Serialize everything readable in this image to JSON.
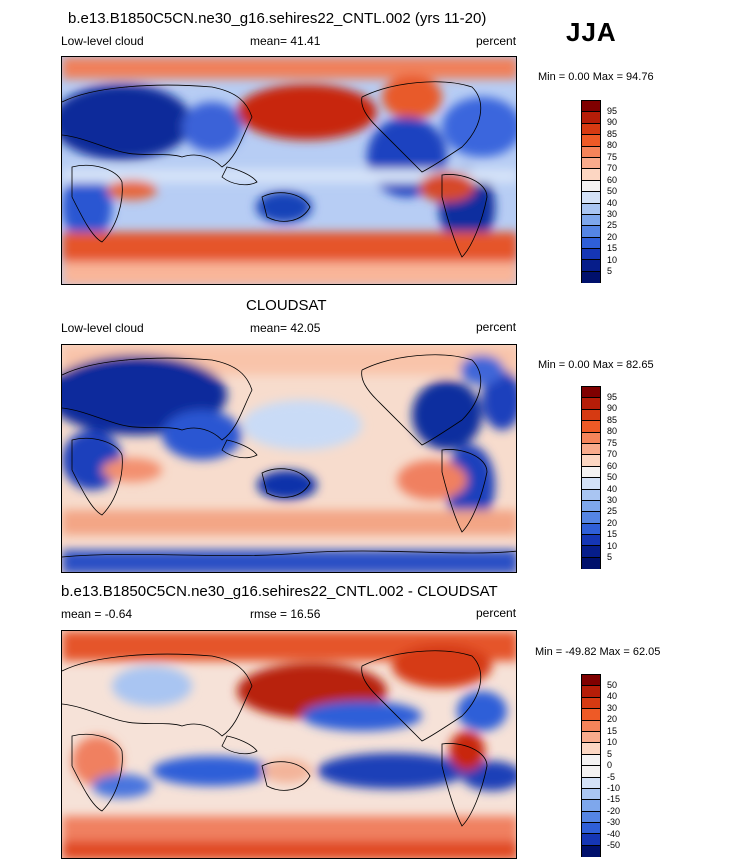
{
  "season": "JJA",
  "panels": [
    {
      "id": "model",
      "title": "b.e13.B1850C5CN.ne30_g16.sehires22_CNTL.002 (yrs 11-20)",
      "left_label": "Low-level cloud",
      "center_label": "mean=  41.41",
      "right_label": "percent",
      "minmax": "Min =   0.00 Max =  94.76",
      "colorbar_levels": [
        "95",
        "90",
        "85",
        "80",
        "75",
        "70",
        "60",
        "50",
        "40",
        "30",
        "25",
        "20",
        "15",
        "10",
        "5"
      ]
    },
    {
      "id": "cloudsat",
      "title": "CLOUDSAT",
      "left_label": "Low-level cloud",
      "center_label": "mean=  42.05",
      "right_label": "percent",
      "minmax": "Min =   0.00 Max =  82.65",
      "colorbar_levels": [
        "95",
        "90",
        "85",
        "80",
        "75",
        "70",
        "60",
        "50",
        "40",
        "30",
        "25",
        "20",
        "15",
        "10",
        "5"
      ]
    },
    {
      "id": "difference",
      "title": "b.e13.B1850C5CN.ne30_g16.sehires22_CNTL.002 - CLOUDSAT",
      "left_label": "mean =  -0.64",
      "center_label": "rmse =  16.56",
      "right_label": "percent",
      "minmax": "Min = -49.82 Max =  62.05",
      "colorbar_levels": [
        "50",
        "40",
        "30",
        "20",
        "15",
        "10",
        "5",
        "0",
        "-5",
        "-10",
        "-15",
        "-20",
        "-30",
        "-40",
        "-50"
      ]
    }
  ],
  "colors": {
    "absolute_scale": [
      "#7f0000",
      "#b51d08",
      "#d63a12",
      "#ee5a26",
      "#f5845a",
      "#f9ab8c",
      "#fcd6c2",
      "#f4f2f2",
      "#d3e1f7",
      "#a9c5f2",
      "#7ea7ec",
      "#5585e4",
      "#2f5fd8",
      "#1536b5",
      "#061d8a",
      "#00106c"
    ],
    "diff_scale": [
      "#7f0000",
      "#b51d08",
      "#d63a12",
      "#ee5a26",
      "#f5845a",
      "#f9ab8c",
      "#fcd6c2",
      "#f4f2f2",
      "#f4f2f2",
      "#d3e1f7",
      "#a9c5f2",
      "#7ea7ec",
      "#5585e4",
      "#2f5fd8",
      "#1536b5",
      "#00106c"
    ],
    "coastline": "#000000"
  }
}
